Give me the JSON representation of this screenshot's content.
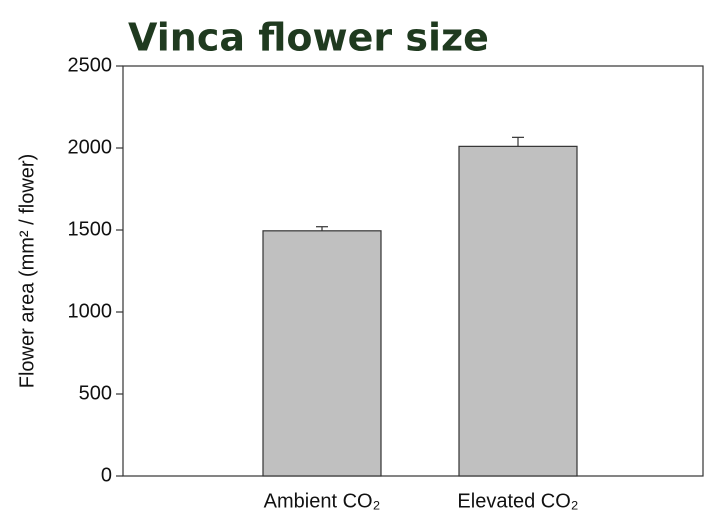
{
  "chart_data": {
    "type": "bar",
    "title": "Vinca flower size",
    "y_label": "Flower area (mm² / flower)",
    "categories": [
      "Ambient CO₂",
      "Elevated CO₂"
    ],
    "values": [
      1495,
      2010
    ],
    "errors": [
      25,
      55
    ],
    "color": "#c0c0c0",
    "ylim": [
      0,
      2500
    ],
    "yticks": [
      0,
      500,
      1000,
      1500,
      2000,
      2500
    ]
  }
}
